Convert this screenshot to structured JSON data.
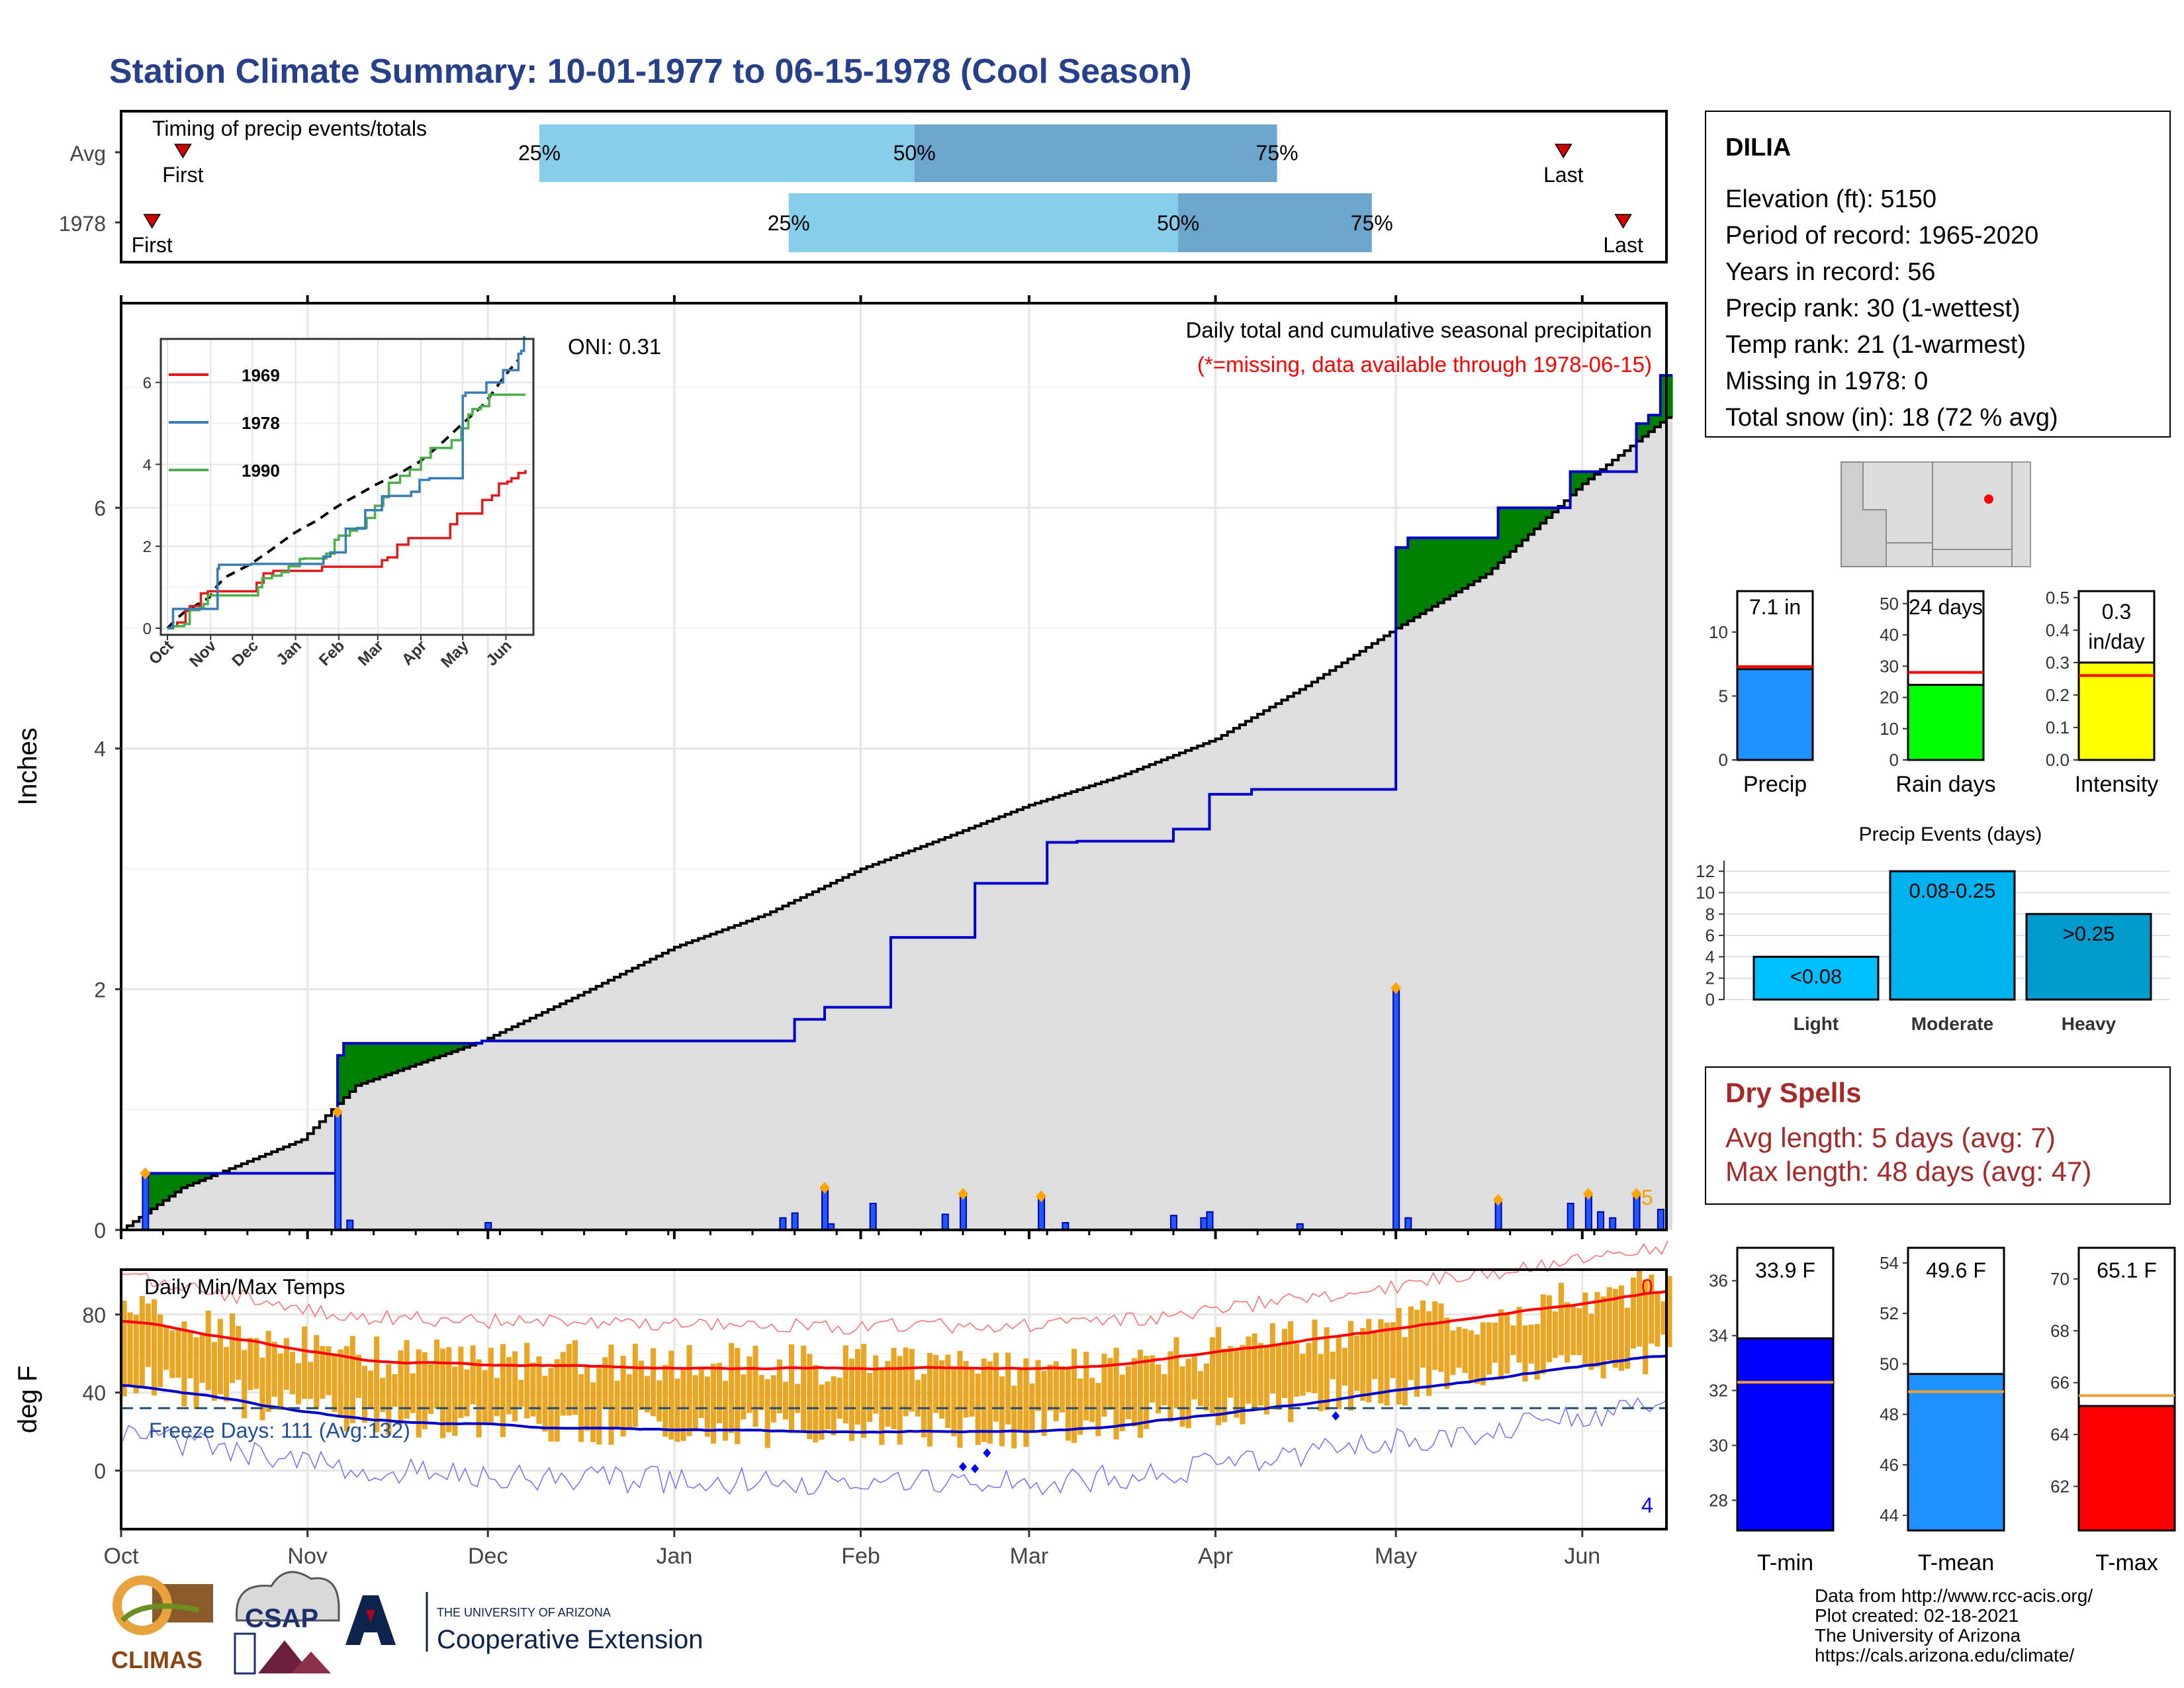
{
  "title": "Station Climate Summary: 10-01-1977 to 06-15-1978 (Cool Season)",
  "timing": {
    "title": "Timing of precip events/totals",
    "rows": [
      {
        "label": "Avg",
        "first": "First",
        "last": "Last",
        "p25": "25%",
        "p50": "50%",
        "p75": "75%",
        "first_day": 30,
        "q25_day": 203,
        "q50_day": 385,
        "q75_day": 561,
        "last_day": 700
      },
      {
        "label": "1978",
        "first": "First",
        "last": "Last",
        "p25": "25%",
        "p50": "50%",
        "p75": "75%",
        "first_day": 15,
        "q25_day": 324,
        "q50_day": 513,
        "q75_day": 607,
        "last_day": 729
      }
    ]
  },
  "station": {
    "name": "DILIA",
    "lines": [
      "Elevation (ft): 5150",
      "Period of record: 1965-2020",
      "Years in record: 56",
      "Precip rank: 30 (1-wettest)",
      "Temp rank: 21 (1-warmest)",
      "Missing in 1978: 0",
      "Total snow (in): 18 (72 % avg)"
    ]
  },
  "main_panel": {
    "ylabel": "Inches",
    "header": "Daily total and cumulative seasonal precipitation",
    "missing_note": "(*=missing, data available through 1978-06-15)",
    "oni": "ONI: 0.31",
    "corner_count": "5",
    "yticks": [
      "0",
      "2",
      "4",
      "6"
    ],
    "months": [
      "Oct",
      "Nov",
      "Dec",
      "Jan",
      "Feb",
      "Mar",
      "Apr",
      "May",
      "Jun"
    ],
    "colors": {
      "above_avg": "#008000",
      "below_avg": "#8B5A00",
      "avg_fill": "#DEDEDE",
      "season_line": "#0000CC"
    }
  },
  "inset": {
    "legend": [
      "1969",
      "1978",
      "1990"
    ],
    "colors": [
      "#E31A1C",
      "#377EB8",
      "#4DAF4A"
    ],
    "yticks": [
      "0",
      "2",
      "4",
      "6"
    ],
    "months": [
      "Oct",
      "Nov",
      "Dec",
      "Jan",
      "Feb",
      "Mar",
      "Apr",
      "May",
      "Jun"
    ]
  },
  "temp_panel": {
    "ylabel": "deg F",
    "title": "Daily Min/Max Temps",
    "freeze": "Freeze Days: 111 (Avg:132)",
    "count_hot": "0",
    "count_cold": "4",
    "yticks": [
      "0",
      "40",
      "80"
    ]
  },
  "summary_bars": [
    {
      "label": "Precip",
      "value_text": "7.1 in",
      "value": 7.1,
      "avg": 7.3,
      "color": "#1E90FF",
      "ticks": [
        "0",
        "5",
        "10"
      ]
    },
    {
      "label": "Rain days",
      "value_text": "24 days",
      "value": 24,
      "avg": 28,
      "color": "#00FF00",
      "ticks": [
        "0",
        "10",
        "20",
        "30",
        "40",
        "50"
      ]
    },
    {
      "label": "Intensity",
      "value_text": "0.3 in/day",
      "value": 0.3,
      "avg": 0.26,
      "color": "#FFFF00",
      "ticks": [
        "0.0",
        "0.1",
        "0.2",
        "0.3",
        "0.4",
        "0.5"
      ]
    }
  ],
  "precip_events": {
    "title": "Precip Events (days)",
    "ticks": [
      "0",
      "2",
      "4",
      "6",
      "8",
      "10",
      "12"
    ],
    "bars": [
      {
        "label": "Light",
        "range": "<0.08",
        "value": 4
      },
      {
        "label": "Moderate",
        "range": "0.08-0.25",
        "value": 12
      },
      {
        "label": "Heavy",
        "range": ">0.25",
        "value": 8
      }
    ]
  },
  "dry_spells": {
    "title": "Dry Spells",
    "avg": "Avg length: 5 days (avg: 7)",
    "max": "Max length: 48 days (avg: 47)"
  },
  "temp_bars": [
    {
      "label": "T-min",
      "value_text": "33.9 F",
      "value": 33.9,
      "avg": 32.3,
      "color": "#0000FF",
      "ticks": [
        "28",
        "30",
        "32",
        "34",
        "36"
      ]
    },
    {
      "label": "T-mean",
      "value_text": "49.6 F",
      "value": 49.6,
      "avg": 48.9,
      "color": "#1E90FF",
      "ticks": [
        "44",
        "46",
        "48",
        "50",
        "52",
        "54"
      ]
    },
    {
      "label": "T-max",
      "value_text": "65.1 F",
      "value": 65.1,
      "avg": 65.5,
      "color": "#FF0000",
      "ticks": [
        "62",
        "64",
        "66",
        "68",
        "70"
      ]
    }
  ],
  "footer": {
    "lines": [
      "Data from http://www.rcc-acis.org/",
      "Plot created: 02-18-2021",
      "The University of Arizona",
      "https://cals.arizona.edu/climate/"
    ],
    "logo_climas": "CLIMAS",
    "logo_csap": "CSAP",
    "logo_ua_small": "THE UNIVERSITY OF ARIZONA",
    "logo_ua_big": "Cooperative Extension"
  },
  "chart_data": {
    "type": "area",
    "x_start": "1977-10-01",
    "x_end": "1978-06-15",
    "ylim": [
      0,
      7.7
    ],
    "avg_cumulative_x": [
      "1977-10-01",
      "1977-10-11",
      "1977-10-31",
      "1977-11-09",
      "1977-11-30",
      "1977-12-16",
      "1978-01-01",
      "1978-01-16",
      "1978-02-01",
      "1978-02-16",
      "1978-03-01",
      "1978-03-16",
      "1978-04-01",
      "1978-04-16",
      "1978-05-01",
      "1978-05-16",
      "1978-06-01",
      "1978-06-15"
    ],
    "avg_cumulative_y": [
      0,
      0.35,
      0.75,
      1.2,
      1.57,
      1.95,
      2.35,
      2.62,
      3.0,
      3.28,
      3.53,
      3.77,
      4.08,
      4.52,
      5.0,
      5.45,
      6.2,
      6.75
    ],
    "season_cumulative_x": [
      "1977-10-05",
      "1977-11-06",
      "1977-11-07",
      "1977-11-30",
      "1978-01-21",
      "1978-01-26",
      "1978-02-06",
      "1978-02-20",
      "1978-03-04",
      "1978-03-09",
      "1978-03-25",
      "1978-03-31",
      "1978-04-07",
      "1978-05-01",
      "1978-05-03",
      "1978-05-18",
      "1978-05-30",
      "1978-06-10",
      "1978-06-12",
      "1978-06-14"
    ],
    "season_cumulative_y": [
      0.47,
      1.45,
      1.55,
      1.57,
      1.75,
      1.85,
      2.43,
      2.88,
      3.22,
      3.23,
      3.33,
      3.62,
      3.66,
      5.67,
      5.75,
      6.0,
      6.3,
      6.7,
      6.77,
      7.1
    ],
    "daily_precip_x": [
      "1977-10-05",
      "1977-11-06",
      "1977-11-08",
      "1977-12-01",
      "1978-01-19",
      "1978-01-21",
      "1978-01-26",
      "1978-01-27",
      "1978-02-03",
      "1978-02-15",
      "1978-02-18",
      "1978-03-03",
      "1978-03-07",
      "1978-03-25",
      "1978-03-30",
      "1978-03-31",
      "1978-04-15",
      "1978-05-01",
      "1978-05-03",
      "1978-05-18",
      "1978-05-30",
      "1978-06-02",
      "1978-06-04",
      "1978-06-06",
      "1978-06-10",
      "1978-06-14"
    ],
    "daily_precip_y": [
      0.47,
      0.98,
      0.08,
      0.06,
      0.1,
      0.14,
      0.35,
      0.05,
      0.22,
      0.13,
      0.3,
      0.28,
      0.06,
      0.12,
      0.1,
      0.15,
      0.05,
      2.01,
      0.1,
      0.25,
      0.22,
      0.3,
      0.15,
      0.1,
      0.3,
      0.17
    ]
  }
}
